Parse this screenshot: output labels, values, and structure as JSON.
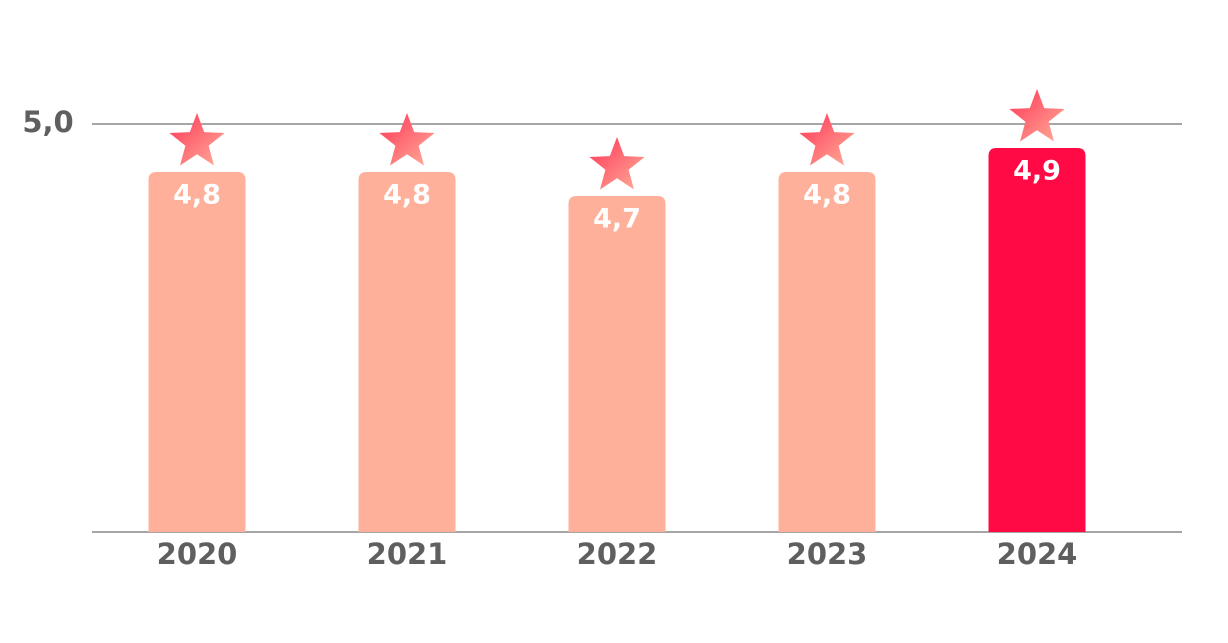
{
  "chart_data": {
    "type": "bar",
    "categories": [
      "2020",
      "2021",
      "2022",
      "2023",
      "2024"
    ],
    "values": [
      4.8,
      4.8,
      4.7,
      4.8,
      4.9
    ],
    "value_labels": [
      "4,8",
      "4,8",
      "4,7",
      "4,8",
      "4,9"
    ],
    "colors": [
      "#ffb09a",
      "#ffb09a",
      "#ffb09a",
      "#ffb09a",
      "#ff0a45"
    ],
    "ylim": [
      3.3,
      5.0
    ],
    "yticks": [
      {
        "value": 5.0,
        "label": "5,0"
      }
    ],
    "grid": true
  }
}
